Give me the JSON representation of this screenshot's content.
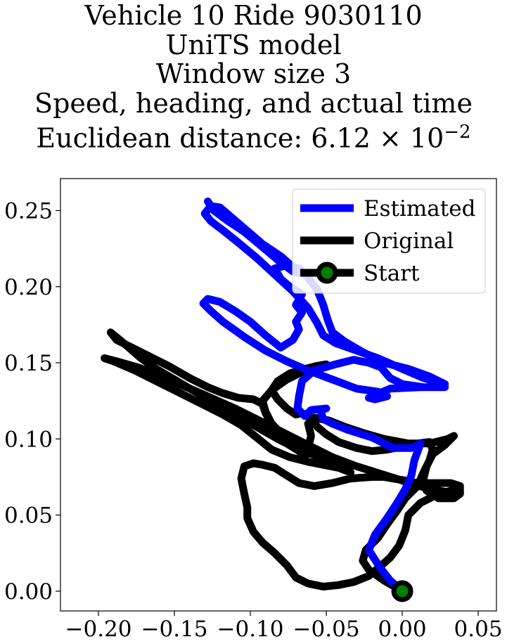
{
  "chart_data": {
    "type": "line",
    "title_lines": [
      "Vehicle 10 Ride 9030110",
      "UniTS model",
      "Window size 3",
      "Speed, heading, and actual time",
      "Euclidean distance: "
    ],
    "euclidean_distance": {
      "mantissa": "6.12",
      "exponent": "−2"
    },
    "xlim": [
      -0.225,
      0.062
    ],
    "ylim": [
      -0.013,
      0.271
    ],
    "x_ticks": [
      -0.2,
      -0.15,
      -0.1,
      -0.05,
      0.0,
      0.05
    ],
    "x_tick_labels": [
      "−0.20",
      "−0.15",
      "−0.10",
      "−0.05",
      "0.00",
      "0.05"
    ],
    "y_ticks": [
      0.0,
      0.05,
      0.1,
      0.15,
      0.2,
      0.25
    ],
    "y_tick_labels": [
      "0.00",
      "0.05",
      "0.10",
      "0.15",
      "0.20",
      "0.25"
    ],
    "grid": false,
    "legend_position": "top-right",
    "series": [
      {
        "name": "Estimated",
        "color": "#0000ff",
        "points": [
          [
            0.0,
            0.0
          ],
          [
            -0.008,
            0.007
          ],
          [
            -0.015,
            0.016
          ],
          [
            -0.022,
            0.027
          ],
          [
            -0.018,
            0.037
          ],
          [
            -0.01,
            0.048
          ],
          [
            -0.004,
            0.057
          ],
          [
            0.002,
            0.067
          ],
          [
            0.006,
            0.076
          ],
          [
            0.008,
            0.086
          ],
          [
            0.012,
            0.097
          ],
          [
            0.006,
            0.094
          ],
          [
            -0.006,
            0.094
          ],
          [
            -0.02,
            0.101
          ],
          [
            -0.036,
            0.106
          ],
          [
            -0.046,
            0.11
          ],
          [
            -0.052,
            0.113
          ],
          [
            -0.054,
            0.119
          ],
          [
            -0.05,
            0.12
          ],
          [
            -0.06,
            0.119
          ],
          [
            -0.064,
            0.115
          ],
          [
            -0.069,
            0.12
          ],
          [
            -0.068,
            0.128
          ],
          [
            -0.066,
            0.138
          ],
          [
            -0.058,
            0.145
          ],
          [
            -0.044,
            0.149
          ],
          [
            -0.032,
            0.152
          ],
          [
            -0.022,
            0.15
          ],
          [
            -0.014,
            0.147
          ],
          [
            -0.008,
            0.14
          ],
          [
            0.0,
            0.136
          ],
          [
            0.014,
            0.134
          ],
          [
            0.028,
            0.134
          ],
          [
            0.012,
            0.134
          ],
          [
            -0.008,
            0.133
          ],
          [
            -0.022,
            0.127
          ],
          [
            -0.018,
            0.126
          ],
          [
            -0.01,
            0.128
          ],
          [
            -0.016,
            0.131
          ],
          [
            -0.03,
            0.133
          ],
          [
            -0.046,
            0.139
          ],
          [
            -0.062,
            0.145
          ],
          [
            -0.076,
            0.151
          ],
          [
            -0.09,
            0.158
          ],
          [
            -0.104,
            0.167
          ],
          [
            -0.118,
            0.177
          ],
          [
            -0.126,
            0.184
          ],
          [
            -0.131,
            0.189
          ],
          [
            -0.128,
            0.192
          ],
          [
            -0.12,
            0.19
          ],
          [
            -0.11,
            0.184
          ],
          [
            -0.1,
            0.177
          ],
          [
            -0.09,
            0.168
          ],
          [
            -0.08,
            0.16
          ],
          [
            -0.072,
            0.165
          ],
          [
            -0.068,
            0.172
          ],
          [
            -0.07,
            0.177
          ],
          [
            -0.066,
            0.183
          ],
          [
            -0.07,
            0.188
          ],
          [
            -0.066,
            0.195
          ],
          [
            -0.074,
            0.2
          ],
          [
            -0.08,
            0.205
          ],
          [
            -0.084,
            0.212
          ],
          [
            -0.076,
            0.214
          ],
          [
            -0.068,
            0.212
          ],
          [
            -0.062,
            0.206
          ],
          [
            -0.056,
            0.198
          ],
          [
            -0.052,
            0.188
          ],
          [
            -0.049,
            0.178
          ],
          [
            -0.046,
            0.17
          ],
          [
            -0.038,
            0.164
          ],
          [
            -0.026,
            0.157
          ],
          [
            -0.012,
            0.15
          ],
          [
            0.004,
            0.146
          ],
          [
            0.018,
            0.141
          ],
          [
            0.028,
            0.136
          ],
          [
            0.014,
            0.14
          ],
          [
            0.0,
            0.146
          ],
          [
            -0.016,
            0.153
          ],
          [
            -0.03,
            0.158
          ],
          [
            -0.044,
            0.163
          ],
          [
            -0.052,
            0.168
          ],
          [
            -0.056,
            0.176
          ],
          [
            -0.062,
            0.186
          ],
          [
            -0.072,
            0.197
          ],
          [
            -0.084,
            0.208
          ],
          [
            -0.096,
            0.219
          ],
          [
            -0.108,
            0.229
          ],
          [
            -0.118,
            0.237
          ],
          [
            -0.126,
            0.243
          ],
          [
            -0.13,
            0.248
          ],
          [
            -0.126,
            0.253
          ],
          [
            -0.12,
            0.252
          ],
          [
            -0.106,
            0.24
          ],
          [
            -0.092,
            0.228
          ],
          [
            -0.08,
            0.22
          ],
          [
            -0.072,
            0.213
          ],
          [
            -0.068,
            0.209
          ],
          [
            -0.072,
            0.21
          ],
          [
            -0.08,
            0.216
          ],
          [
            -0.092,
            0.226
          ],
          [
            -0.104,
            0.236
          ],
          [
            -0.116,
            0.244
          ],
          [
            -0.124,
            0.25
          ],
          [
            -0.128,
            0.256
          ]
        ]
      },
      {
        "name": "Original",
        "color": "#000000",
        "points": [
          [
            0.0,
            0.0
          ],
          [
            -0.012,
            0.007
          ],
          [
            -0.022,
            0.014
          ],
          [
            -0.026,
            0.02
          ],
          [
            -0.024,
            0.027
          ],
          [
            -0.016,
            0.035
          ],
          [
            -0.01,
            0.044
          ],
          [
            -0.004,
            0.052
          ],
          [
            0.002,
            0.061
          ],
          [
            0.01,
            0.069
          ],
          [
            0.014,
            0.078
          ],
          [
            0.018,
            0.086
          ],
          [
            0.02,
            0.093
          ],
          [
            0.018,
            0.098
          ],
          [
            0.01,
            0.097
          ],
          [
            0.0,
            0.095
          ],
          [
            -0.01,
            0.093
          ],
          [
            -0.02,
            0.092
          ],
          [
            -0.03,
            0.094
          ],
          [
            -0.042,
            0.098
          ],
          [
            -0.05,
            0.103
          ],
          [
            -0.056,
            0.108
          ],
          [
            -0.06,
            0.114
          ],
          [
            -0.066,
            0.117
          ],
          [
            -0.07,
            0.116
          ],
          [
            -0.076,
            0.12
          ],
          [
            -0.082,
            0.126
          ],
          [
            -0.086,
            0.132
          ],
          [
            -0.082,
            0.138
          ],
          [
            -0.074,
            0.143
          ],
          [
            -0.064,
            0.146
          ],
          [
            -0.056,
            0.148
          ],
          [
            -0.05,
            0.149
          ],
          [
            -0.054,
            0.147
          ],
          [
            -0.064,
            0.145
          ],
          [
            -0.076,
            0.139
          ],
          [
            -0.086,
            0.132
          ],
          [
            -0.092,
            0.125
          ],
          [
            -0.09,
            0.118
          ],
          [
            -0.086,
            0.11
          ],
          [
            -0.082,
            0.103
          ],
          [
            -0.076,
            0.097
          ],
          [
            -0.068,
            0.092
          ],
          [
            -0.064,
            0.088
          ],
          [
            -0.062,
            0.094
          ],
          [
            -0.06,
            0.102
          ],
          [
            -0.062,
            0.11
          ],
          [
            -0.058,
            0.114
          ],
          [
            -0.048,
            0.112
          ],
          [
            -0.038,
            0.108
          ],
          [
            -0.026,
            0.104
          ],
          [
            -0.012,
            0.1
          ],
          [
            0.004,
            0.097
          ],
          [
            0.018,
            0.097
          ],
          [
            0.03,
            0.1
          ],
          [
            0.034,
            0.102
          ],
          [
            0.028,
            0.096
          ],
          [
            0.02,
            0.09
          ],
          [
            0.016,
            0.082
          ],
          [
            0.014,
            0.074
          ],
          [
            0.016,
            0.066
          ],
          [
            0.024,
            0.061
          ],
          [
            0.034,
            0.061
          ],
          [
            0.038,
            0.064
          ],
          [
            0.038,
            0.069
          ],
          [
            0.032,
            0.071
          ],
          [
            0.022,
            0.071
          ],
          [
            0.01,
            0.071
          ],
          [
            0.0,
            0.073
          ],
          [
            -0.012,
            0.075
          ],
          [
            -0.02,
            0.075
          ],
          [
            -0.034,
            0.074
          ],
          [
            -0.046,
            0.071
          ],
          [
            -0.058,
            0.069
          ],
          [
            -0.068,
            0.071
          ],
          [
            -0.076,
            0.076
          ],
          [
            -0.084,
            0.081
          ],
          [
            -0.092,
            0.083
          ],
          [
            -0.098,
            0.084
          ],
          [
            -0.104,
            0.082
          ],
          [
            -0.106,
            0.074
          ],
          [
            -0.104,
            0.064
          ],
          [
            -0.102,
            0.055
          ],
          [
            -0.102,
            0.048
          ],
          [
            -0.098,
            0.039
          ],
          [
            -0.092,
            0.032
          ],
          [
            -0.084,
            0.025
          ],
          [
            -0.076,
            0.017
          ],
          [
            -0.07,
            0.009
          ],
          [
            -0.062,
            0.005
          ],
          [
            -0.052,
            0.003
          ],
          [
            -0.042,
            0.004
          ],
          [
            -0.032,
            0.006
          ],
          [
            -0.022,
            0.01
          ],
          [
            -0.016,
            0.015
          ],
          [
            -0.008,
            0.022
          ],
          [
            -0.002,
            0.03
          ],
          [
            0.002,
            0.04
          ],
          [
            0.004,
            0.05
          ],
          [
            0.012,
            0.058
          ],
          [
            0.022,
            0.063
          ],
          [
            0.032,
            0.066
          ],
          [
            0.036,
            0.066
          ],
          [
            0.03,
            0.065
          ],
          [
            0.018,
            0.067
          ],
          [
            0.002,
            0.072
          ],
          [
            -0.014,
            0.077
          ],
          [
            -0.03,
            0.082
          ],
          [
            -0.046,
            0.088
          ],
          [
            -0.062,
            0.096
          ],
          [
            -0.078,
            0.104
          ],
          [
            -0.094,
            0.112
          ],
          [
            -0.11,
            0.12
          ],
          [
            -0.126,
            0.127
          ],
          [
            -0.142,
            0.134
          ],
          [
            -0.158,
            0.141
          ],
          [
            -0.174,
            0.147
          ],
          [
            -0.188,
            0.151
          ],
          [
            -0.196,
            0.153
          ],
          [
            -0.19,
            0.151
          ],
          [
            -0.176,
            0.145
          ],
          [
            -0.16,
            0.137
          ],
          [
            -0.146,
            0.13
          ],
          [
            -0.132,
            0.123
          ],
          [
            -0.118,
            0.116
          ],
          [
            -0.106,
            0.109
          ],
          [
            -0.096,
            0.101
          ],
          [
            -0.086,
            0.093
          ],
          [
            -0.074,
            0.088
          ],
          [
            -0.062,
            0.085
          ],
          [
            -0.052,
            0.083
          ],
          [
            -0.042,
            0.081
          ],
          [
            -0.034,
            0.078
          ],
          [
            -0.04,
            0.084
          ],
          [
            -0.054,
            0.088
          ],
          [
            -0.068,
            0.093
          ],
          [
            -0.082,
            0.1
          ],
          [
            -0.096,
            0.108
          ],
          [
            -0.11,
            0.116
          ],
          [
            -0.124,
            0.124
          ],
          [
            -0.138,
            0.132
          ],
          [
            -0.15,
            0.139
          ],
          [
            -0.162,
            0.146
          ],
          [
            -0.172,
            0.153
          ],
          [
            -0.18,
            0.16
          ],
          [
            -0.186,
            0.165
          ],
          [
            -0.192,
            0.17
          ],
          [
            -0.188,
            0.165
          ],
          [
            -0.18,
            0.161
          ],
          [
            -0.168,
            0.155
          ],
          [
            -0.154,
            0.148
          ],
          [
            -0.14,
            0.14
          ],
          [
            -0.128,
            0.134
          ],
          [
            -0.118,
            0.13
          ],
          [
            -0.108,
            0.127
          ],
          [
            -0.098,
            0.126
          ],
          [
            -0.092,
            0.123
          ],
          [
            -0.09,
            0.117
          ],
          [
            -0.086,
            0.11
          ],
          [
            -0.08,
            0.104
          ],
          [
            -0.074,
            0.1
          ],
          [
            -0.068,
            0.096
          ],
          [
            -0.062,
            0.094
          ]
        ]
      },
      {
        "name": "Start",
        "color": "#000000",
        "marker_face": "#008000",
        "points": [
          [
            0.0,
            0.0
          ]
        ]
      }
    ]
  }
}
